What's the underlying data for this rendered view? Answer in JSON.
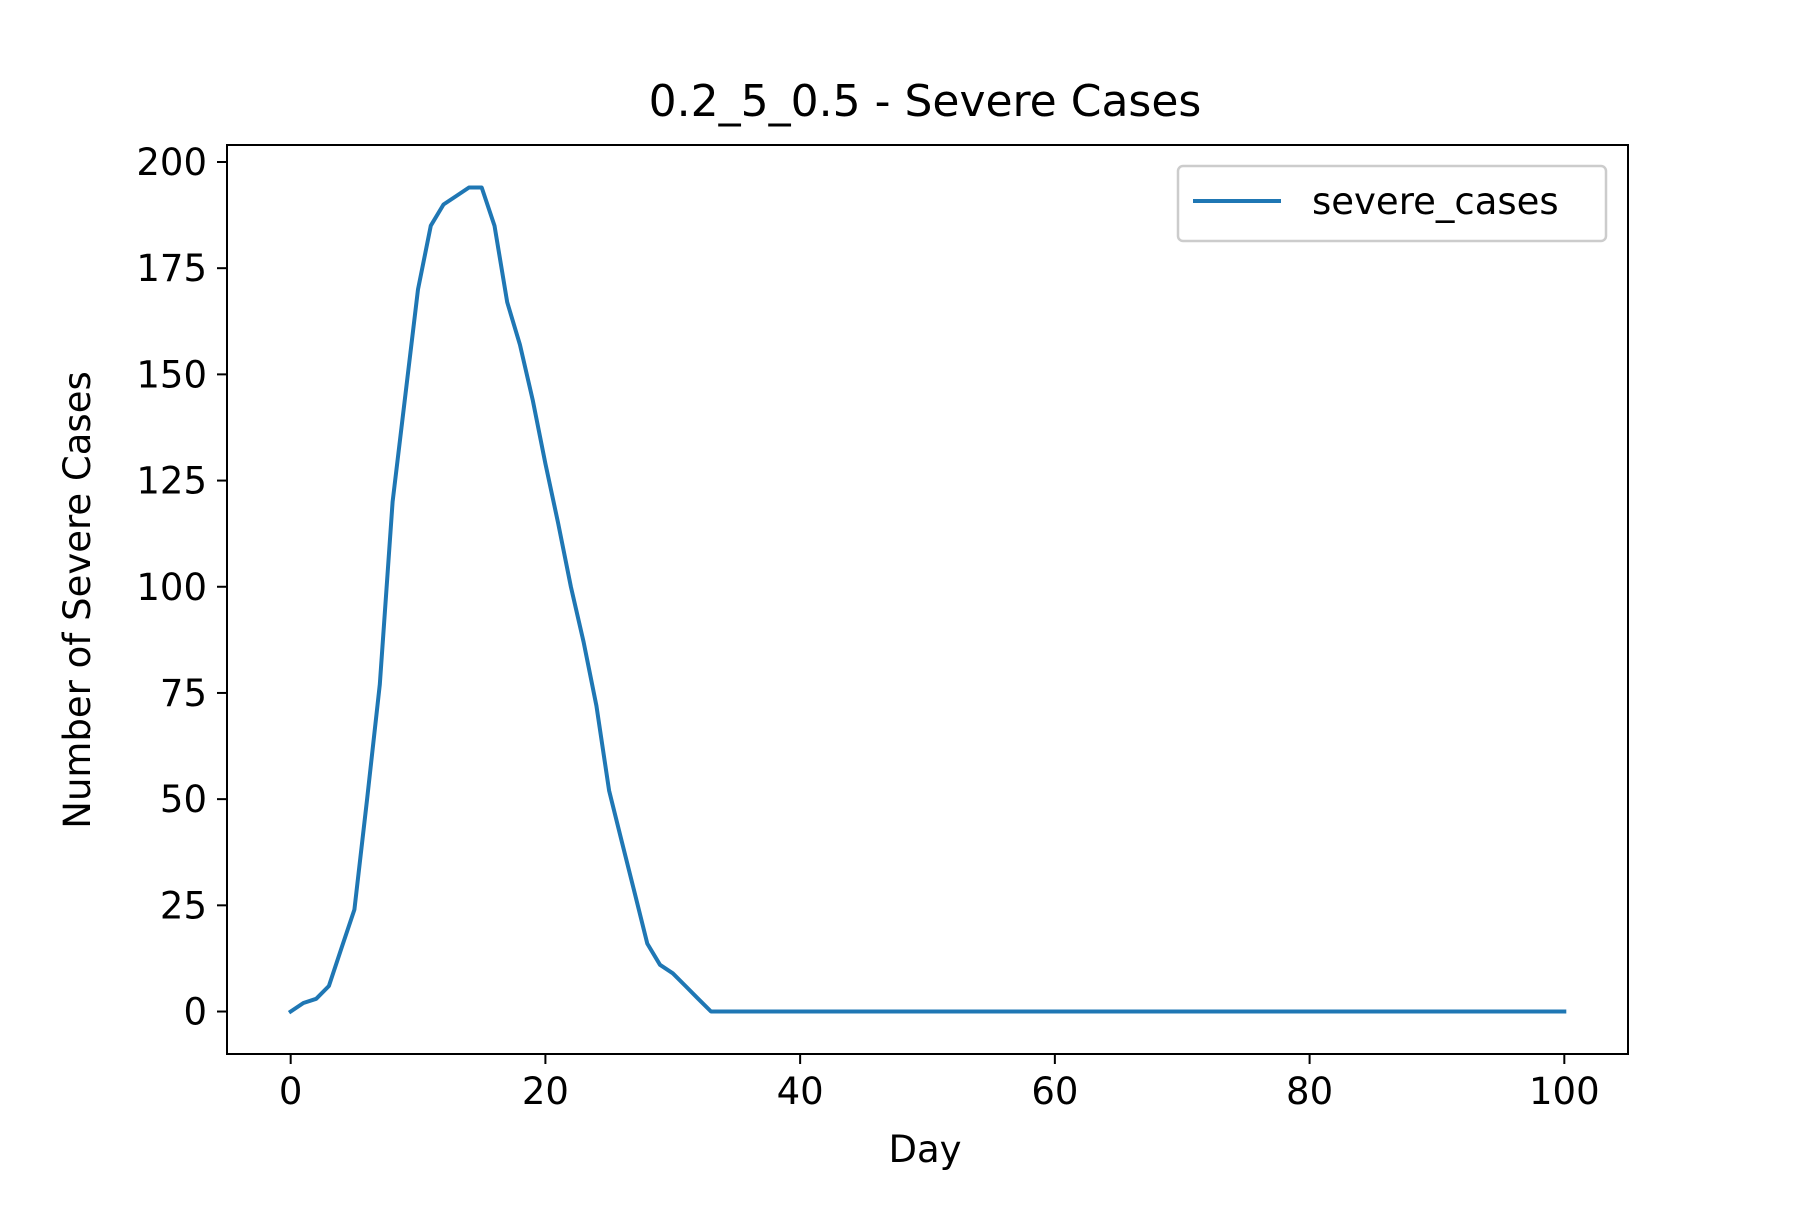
{
  "chart_data": {
    "type": "line",
    "title": "0.2_5_0.5 - Severe Cases",
    "xlabel": "Day",
    "ylabel": "Number of Severe Cases",
    "xlim": [
      -5,
      105
    ],
    "ylim": [
      -10,
      204
    ],
    "xticks": [
      0,
      20,
      40,
      60,
      80,
      100
    ],
    "yticks": [
      0,
      25,
      50,
      75,
      100,
      125,
      150,
      175,
      200
    ],
    "grid": false,
    "legend_position": "top-right",
    "series": [
      {
        "name": "severe_cases",
        "color": "#1f77b4",
        "x": [
          0,
          1,
          2,
          3,
          4,
          5,
          6,
          7,
          8,
          9,
          10,
          11,
          12,
          13,
          14,
          15,
          16,
          17,
          18,
          19,
          20,
          21,
          22,
          23,
          24,
          25,
          26,
          27,
          28,
          29,
          30,
          31,
          32,
          33,
          34,
          35,
          40,
          50,
          60,
          70,
          80,
          90,
          100
        ],
        "values": [
          0,
          2,
          3,
          6,
          15,
          24,
          50,
          77,
          120,
          145,
          170,
          185,
          190,
          192,
          194,
          194,
          185,
          167,
          157,
          144,
          129,
          115,
          100,
          87,
          72,
          52,
          40,
          28,
          16,
          11,
          9,
          6,
          3,
          0,
          0,
          0,
          0,
          0,
          0,
          0,
          0,
          0,
          0
        ]
      }
    ]
  }
}
